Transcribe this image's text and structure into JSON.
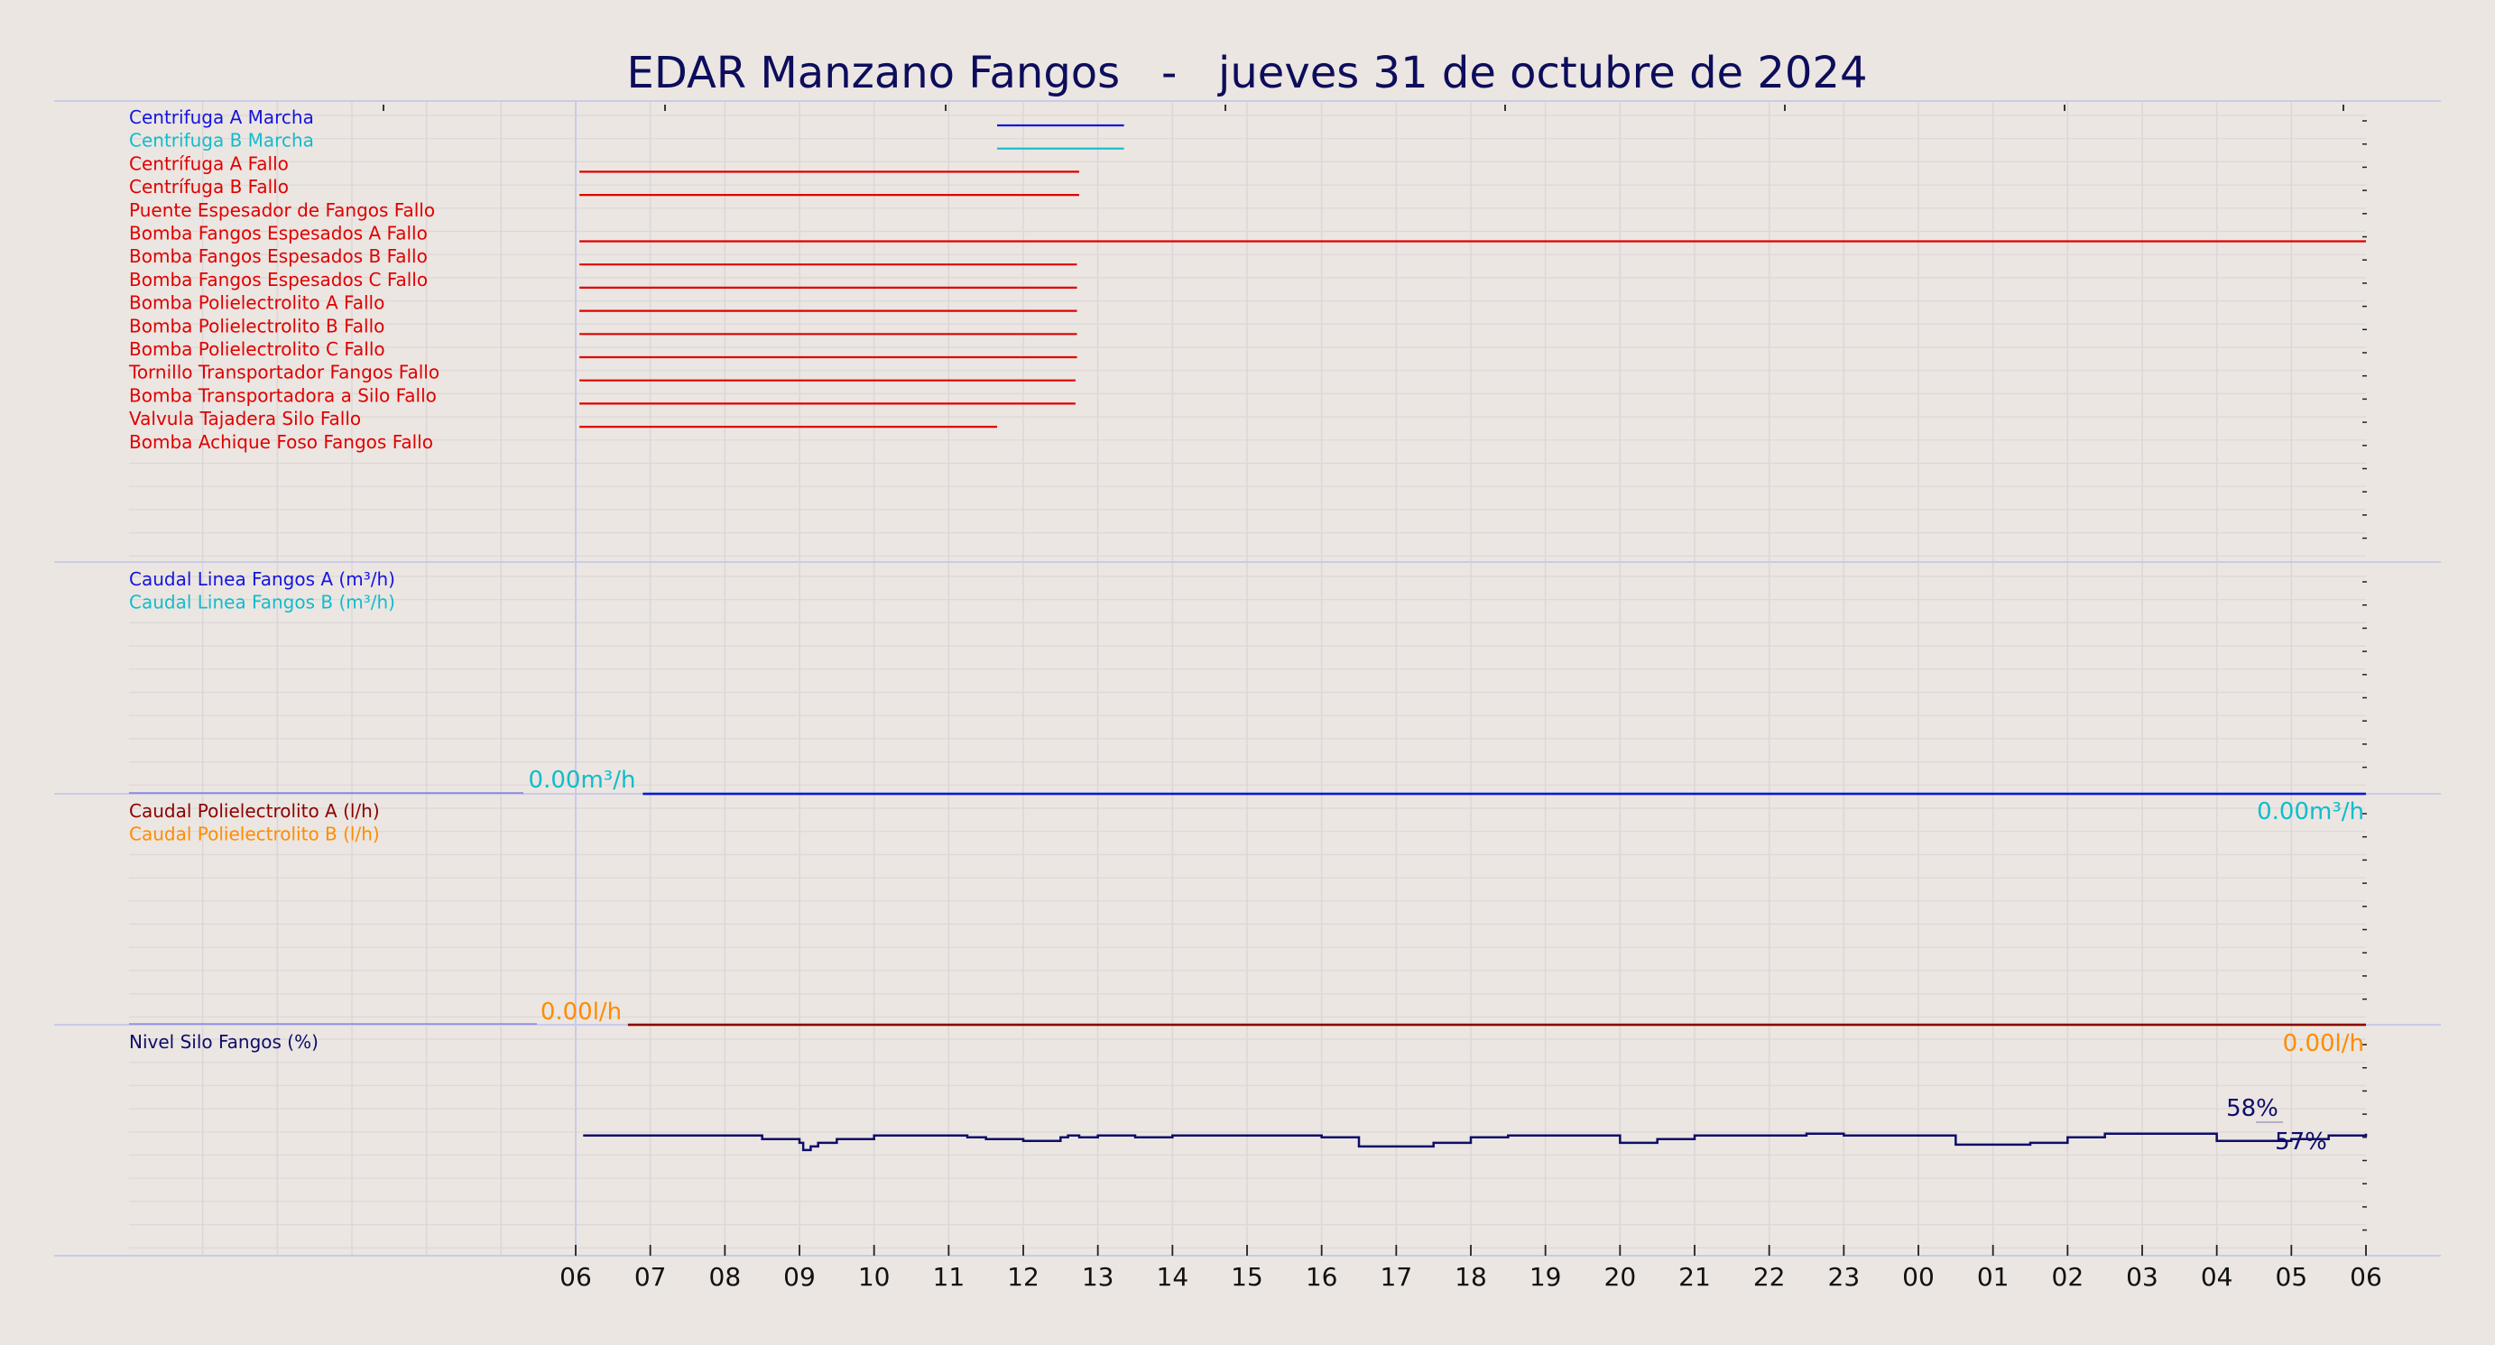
{
  "title": "EDAR Manzano Fangos   -   jueves 31 de octubre de 2024",
  "colors": {
    "background": "#ebe6e1",
    "title": "#0d0d5c",
    "grid": "#dcd6d8",
    "panel_border": "#c9cbe8",
    "navy": "#0d0d6b",
    "blue": "#1414e0",
    "cyan": "#11bccc",
    "red": "#e00000",
    "dark_red": "#8b0000",
    "orange": "#ff8c00"
  },
  "x_tick_labels": [
    "06",
    "07",
    "08",
    "09",
    "10",
    "11",
    "12",
    "13",
    "14",
    "15",
    "16",
    "17",
    "18",
    "19",
    "20",
    "21",
    "22",
    "23",
    "00",
    "01",
    "02",
    "03",
    "04",
    "05",
    "06"
  ],
  "chart_data": [
    {
      "type": "line",
      "kind": "digital-timeline",
      "x_unit": "hour",
      "xlim": [
        0,
        24
      ],
      "series": [
        {
          "name": "Centrifuga A Marcha",
          "color": "blue",
          "segments": [
            [
              5.65,
              7.35
            ]
          ]
        },
        {
          "name": "Centrifuga B Marcha",
          "color": "cyan",
          "segments": [
            [
              5.65,
              7.35
            ]
          ]
        },
        {
          "name": "Centrífuga A Fallo",
          "color": "red",
          "segments": [
            [
              0.05,
              6.75
            ]
          ]
        },
        {
          "name": "Centrífuga B Fallo",
          "color": "red",
          "segments": [
            [
              0.05,
              6.75
            ]
          ]
        },
        {
          "name": "Puente Espesador de Fangos Fallo",
          "color": "red",
          "segments": []
        },
        {
          "name": "Bomba Fangos Espesados A Fallo",
          "color": "red",
          "segments": [
            [
              0.05,
              24
            ]
          ]
        },
        {
          "name": "Bomba Fangos Espesados B Fallo",
          "color": "red",
          "segments": [
            [
              0.05,
              6.72
            ]
          ]
        },
        {
          "name": "Bomba Fangos Espesados C Fallo",
          "color": "red",
          "segments": [
            [
              0.05,
              6.72
            ]
          ]
        },
        {
          "name": "Bomba Polielectrolito A Fallo",
          "color": "red",
          "segments": [
            [
              0.05,
              6.72
            ]
          ]
        },
        {
          "name": "Bomba Polielectrolito B Fallo",
          "color": "red",
          "segments": [
            [
              0.05,
              6.72
            ]
          ]
        },
        {
          "name": "Bomba Polielectrolito C Fallo",
          "color": "red",
          "segments": [
            [
              0.05,
              6.72
            ]
          ]
        },
        {
          "name": "Tornillo Transportador Fangos Fallo",
          "color": "red",
          "segments": [
            [
              0.05,
              6.7
            ]
          ]
        },
        {
          "name": "Bomba Transportadora a Silo Fallo",
          "color": "red",
          "segments": [
            [
              0.05,
              6.7
            ]
          ]
        },
        {
          "name": "Valvula Tajadera Silo Fallo",
          "color": "red",
          "segments": [
            [
              0.05,
              5.65
            ]
          ]
        },
        {
          "name": "Bomba Achique Foso Fangos Fallo",
          "color": "red",
          "segments": []
        }
      ]
    },
    {
      "type": "line",
      "x_unit": "hour",
      "xlim": [
        0,
        24
      ],
      "series": [
        {
          "name": "Caudal Linea Fangos A (m³/h)",
          "color": "blue",
          "x": [
            0.9,
            24
          ],
          "y": [
            0.0,
            0.0
          ]
        },
        {
          "name": "Caudal Linea Fangos B (m³/h)",
          "color": "cyan",
          "x": [
            0.9,
            24
          ],
          "y": [
            0.0,
            0.0
          ]
        }
      ],
      "annotations": [
        "0.00m³/h",
        "0.00m³/h"
      ]
    },
    {
      "type": "line",
      "x_unit": "hour",
      "xlim": [
        0,
        24
      ],
      "series": [
        {
          "name": "Caudal Polielectrolito A (l/h)",
          "color": "dark_red",
          "x": [
            0.7,
            24
          ],
          "y": [
            0.0,
            0.0
          ]
        },
        {
          "name": "Caudal Polielectrolito B (l/h)",
          "color": "orange",
          "x": [
            0.7,
            24
          ],
          "y": [
            0.0,
            0.0
          ]
        }
      ],
      "annotations": [
        "0.00l/h",
        "0.00l/h"
      ]
    },
    {
      "type": "line",
      "step": true,
      "x_unit": "hour",
      "xlim": [
        0,
        24
      ],
      "ylim": [
        0,
        100
      ],
      "series": [
        {
          "name": "Nivel Silo Fangos (%)",
          "color": "navy",
          "x": [
            0.1,
            2.0,
            2.5,
            3.0,
            3.05,
            3.15,
            3.25,
            3.5,
            4.0,
            5.0,
            5.25,
            5.5,
            6.0,
            6.5,
            6.6,
            6.75,
            7.0,
            7.5,
            8.0,
            8.5,
            9.0,
            10.0,
            10.5,
            11.0,
            11.5,
            12.0,
            12.5,
            13.0,
            13.5,
            14.0,
            14.5,
            15.0,
            15.5,
            16.0,
            16.5,
            17.0,
            17.5,
            18.0,
            18.5,
            19.0,
            19.5,
            20.0,
            20.5,
            21.0,
            21.5,
            22.0,
            22.5,
            23.0,
            23.5,
            24.0
          ],
          "y": [
            57,
            57,
            55,
            53,
            49,
            51,
            53,
            55,
            57,
            57,
            56,
            55,
            54,
            56,
            57,
            56,
            57,
            56,
            57,
            57,
            57,
            56,
            51,
            51,
            53,
            56,
            57,
            57,
            57,
            53,
            55,
            57,
            57,
            57,
            58,
            57,
            57,
            57,
            52,
            52,
            53,
            56,
            58,
            58,
            58,
            54,
            54,
            55,
            57,
            58
          ]
        }
      ],
      "annotations": [
        "58%",
        "57%"
      ]
    }
  ]
}
